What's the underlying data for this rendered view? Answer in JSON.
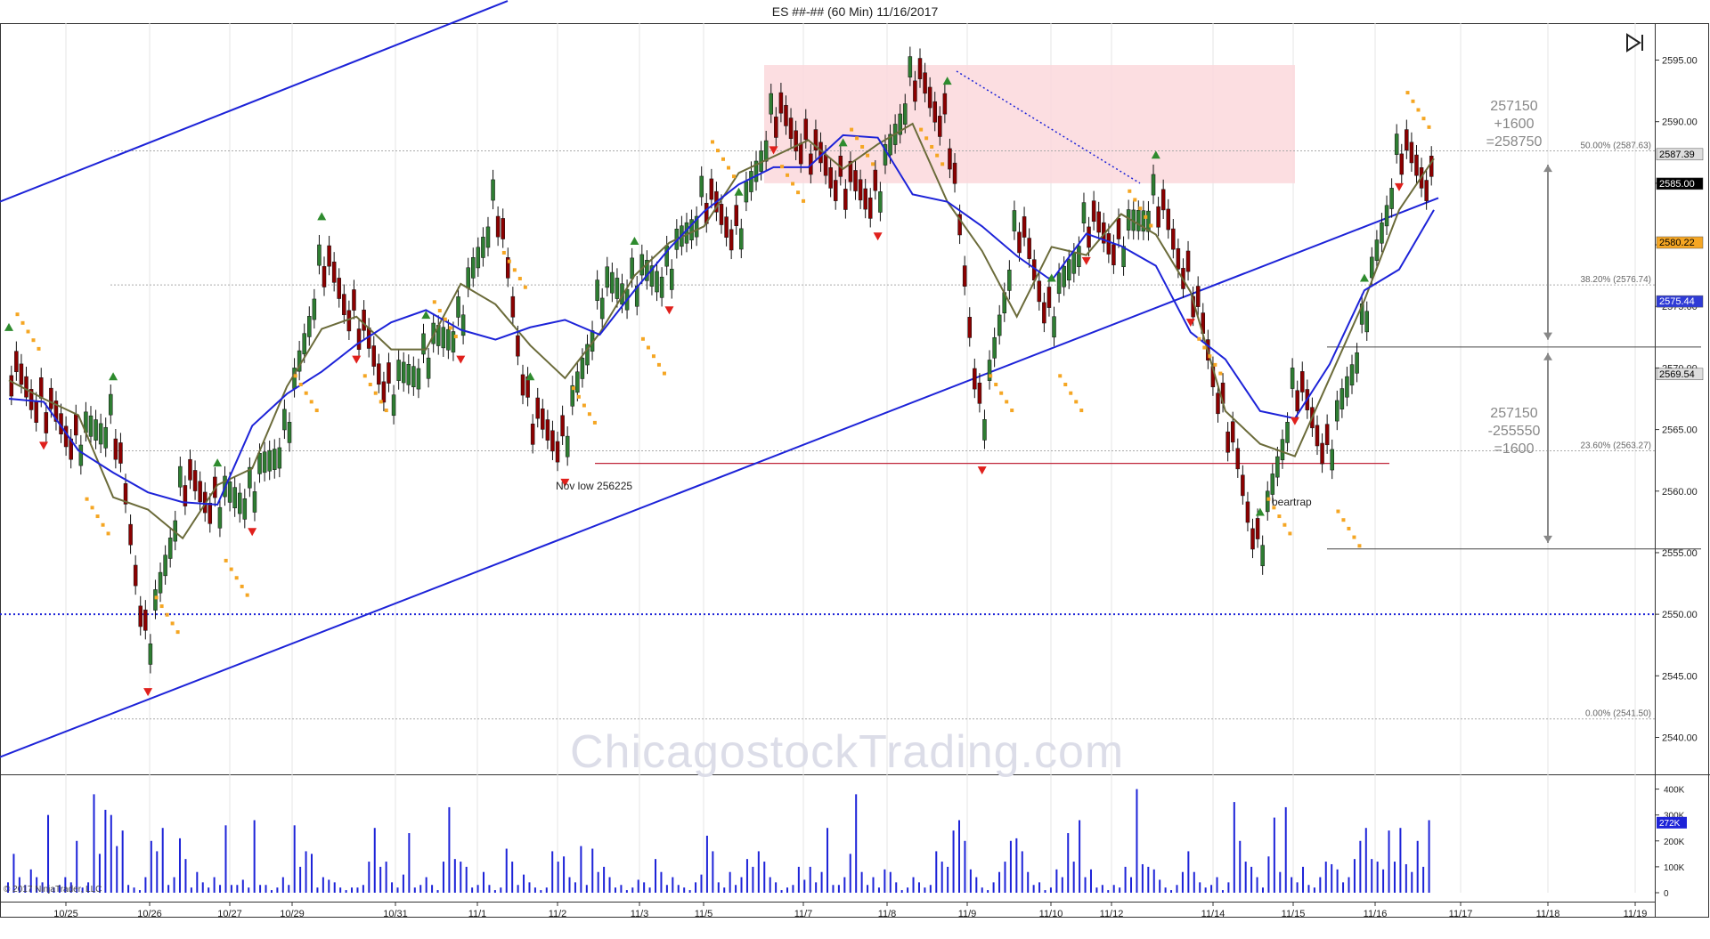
{
  "window": {
    "title": "ES ##-## (60 Min)  11/16/2017"
  },
  "copyright": "© 2017 NinjaTrader, LLC",
  "watermark": "ChicagostockTrading.com",
  "chart_data": {
    "type": "candlestick",
    "title": "ES ##-## (60 Min)  11/16/2017",
    "ylim": [
      2537,
      2598
    ],
    "y_ticks": [
      "2595.00",
      "2590.00",
      "2585.00",
      "2580.00",
      "2575.00",
      "2570.00",
      "2565.00",
      "2560.00",
      "2555.00",
      "2550.00",
      "2545.00",
      "2540.00"
    ],
    "x_ticks": [
      "10/25",
      "10/26",
      "10/27",
      "10/29",
      "10/31",
      "11/1",
      "11/2",
      "11/3",
      "11/5",
      "11/7",
      "11/8",
      "11/9",
      "11/10",
      "11/12",
      "11/14",
      "11/15",
      "11/16",
      "11/17",
      "11/18",
      "11/19"
    ],
    "price_path": [
      [
        "10/24",
        2570
      ],
      [
        "10/25",
        2567
      ],
      [
        "10/25",
        2564
      ],
      [
        "10/25",
        2566
      ],
      [
        "10/26",
        2547
      ],
      [
        "10/26",
        2561
      ],
      [
        "10/26",
        2559
      ],
      [
        "10/27",
        2560
      ],
      [
        "10/27",
        2565
      ],
      [
        "10/29",
        2579
      ],
      [
        "10/29",
        2574
      ],
      [
        "10/31",
        2568
      ],
      [
        "10/31",
        2571
      ],
      [
        "11/1",
        2574
      ],
      [
        "11/1",
        2584
      ],
      [
        "11/2",
        2566
      ],
      [
        "11/2",
        2564
      ],
      [
        "11/2",
        2576
      ],
      [
        "11/3",
        2577
      ],
      [
        "11/3",
        2578
      ],
      [
        "11/5",
        2584
      ],
      [
        "11/5",
        2581
      ],
      [
        "11/7",
        2591
      ],
      [
        "11/7",
        2588
      ],
      [
        "11/8",
        2585
      ],
      [
        "11/8",
        2584
      ],
      [
        "11/9",
        2594
      ],
      [
        "11/9",
        2590
      ],
      [
        "11/10",
        2565
      ],
      [
        "11/10",
        2582
      ],
      [
        "11/10",
        2574
      ],
      [
        "11/12",
        2582
      ],
      [
        "11/12",
        2580
      ],
      [
        "11/14",
        2584
      ],
      [
        "11/14",
        2577
      ],
      [
        "11/15",
        2566
      ],
      [
        "11/15",
        2555
      ],
      [
        "11/15",
        2569
      ],
      [
        "11/16",
        2563
      ],
      [
        "11/16",
        2574
      ],
      [
        "11/16",
        2588
      ],
      [
        "11/16",
        2585
      ]
    ],
    "price_markers": [
      {
        "label": "2587.39",
        "value": 2587.39,
        "color": "#dddddd"
      },
      {
        "label": "2585.00",
        "value": 2585.0,
        "color": "#000000"
      },
      {
        "label": "2580.22",
        "value": 2580.22,
        "color": "#f5a623"
      },
      {
        "label": "2575.44",
        "value": 2575.44,
        "color": "#2f3bd6"
      },
      {
        "label": "2569.54",
        "value": 2569.54,
        "color": "#dddddd"
      }
    ],
    "fibonacci": [
      {
        "label": "50.00% (2587.63)",
        "value": 2587.63
      },
      {
        "label": "38.20% (2576.74)",
        "value": 2576.74
      },
      {
        "label": "23.60% (2563.27)",
        "value": 2563.27
      },
      {
        "label": "0.00% (2541.50)",
        "value": 2541.5
      }
    ],
    "horizontal_levels": [
      {
        "value": 2550.0,
        "color": "#1d23d8",
        "style": "dotted"
      },
      {
        "value": 2562.25,
        "color": "#c0263a",
        "style": "solid"
      }
    ],
    "annotations": [
      {
        "text": "Nov low 256225"
      },
      {
        "text": "beartrap"
      }
    ],
    "notes": [
      {
        "lines": [
          "257150",
          "+1600",
          "=258750"
        ]
      },
      {
        "lines": [
          "257150",
          "-255550",
          "=1600"
        ]
      }
    ],
    "volume": {
      "y_ticks": [
        "400K",
        "300K",
        "200K",
        "100K",
        "0"
      ],
      "ylim": [
        0,
        450000
      ],
      "last_label": "272K",
      "values": [
        40,
        150,
        60,
        30,
        90,
        60,
        40,
        300,
        20,
        30,
        60,
        40,
        200,
        20,
        40,
        380,
        150,
        320,
        300,
        180,
        240,
        30,
        20,
        10,
        60,
        200,
        160,
        250,
        30,
        60,
        210,
        130,
        20,
        80,
        40,
        20,
        60,
        30,
        260,
        30,
        30,
        50,
        20,
        280,
        30,
        30,
        10,
        20,
        60,
        30,
        260,
        100,
        160,
        150,
        20,
        60,
        50,
        40,
        20,
        10,
        20,
        20,
        30,
        120,
        250,
        100,
        120,
        40,
        20,
        70,
        230,
        20,
        30,
        60,
        30,
        10,
        120,
        330,
        130,
        120,
        100,
        20,
        30,
        80,
        30,
        10,
        20,
        170,
        120,
        30,
        70,
        40,
        20,
        10,
        20,
        160,
        120,
        140,
        60,
        40,
        180,
        30,
        170,
        80,
        100,
        60,
        20,
        30,
        10,
        20,
        50,
        40,
        20,
        130,
        80,
        30,
        60,
        30,
        20,
        10,
        40,
        70,
        220,
        160,
        40,
        20,
        80,
        30,
        60,
        130,
        100,
        160,
        120,
        60,
        40,
        10,
        20,
        30,
        100,
        50,
        100,
        40,
        80,
        250,
        30,
        30,
        60,
        150,
        380,
        80,
        30,
        60,
        20,
        90,
        80,
        40,
        10,
        20,
        60,
        40,
        20,
        30,
        160,
        120,
        100,
        240,
        280,
        200,
        90,
        60,
        20,
        10,
        40,
        80,
        120,
        200,
        210,
        160,
        80,
        30,
        40,
        10,
        20,
        90,
        60,
        230,
        120,
        280,
        60,
        90,
        20,
        30,
        10,
        30,
        20,
        100,
        60,
        400,
        110,
        100,
        90,
        50,
        20,
        10,
        30,
        80,
        160,
        80,
        40,
        20,
        30,
        60,
        10,
        40,
        350,
        200,
        120,
        100,
        60,
        20,
        140,
        290,
        80,
        330,
        60,
        40,
        100,
        30,
        20,
        60,
        120,
        110,
        90,
        40,
        60,
        130,
        200,
        250,
        130,
        120,
        90,
        240,
        120,
        250,
        110,
        80,
        200,
        100,
        280
      ]
    }
  }
}
